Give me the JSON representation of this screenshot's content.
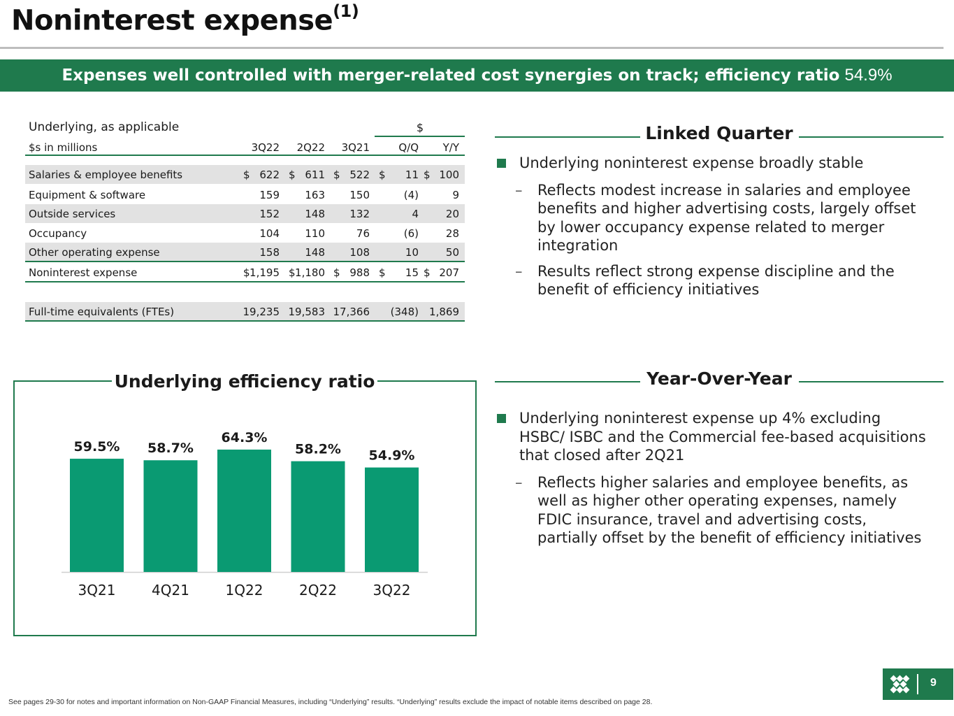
{
  "page": {
    "title": "Noninterest expense",
    "title_superscript": "(1)",
    "page_number": "9",
    "footnote": "See pages 29-30 for notes and important information on Non-GAAP Financial Measures, including “Underlying” results. “Underlying” results exclude the impact of notable items described on page 28."
  },
  "banner": {
    "text": "Expenses well controlled with merger-related cost synergies on track; efficiency ratio",
    "ratio": "54.9%"
  },
  "table": {
    "caption": "Underlying, as applicable",
    "group_header": "$",
    "units_label": "$s in millions",
    "columns": [
      "3Q22",
      "2Q22",
      "3Q21",
      "Q/Q",
      "Y/Y"
    ],
    "rows": [
      {
        "label": "Salaries & employee benefits",
        "values": [
          "622",
          "611",
          "522",
          "11",
          "100"
        ],
        "dollar": [
          "$",
          "$",
          "$",
          "$",
          "$"
        ]
      },
      {
        "label": "Equipment & software",
        "values": [
          "159",
          "163",
          "150",
          "(4)",
          "9"
        ],
        "dollar": [
          "",
          "",
          "",
          "",
          ""
        ]
      },
      {
        "label": "Outside services",
        "values": [
          "152",
          "148",
          "132",
          "4",
          "20"
        ],
        "dollar": [
          "",
          "",
          "",
          "",
          ""
        ]
      },
      {
        "label": "Occupancy",
        "values": [
          "104",
          "110",
          "76",
          "(6)",
          "28"
        ],
        "dollar": [
          "",
          "",
          "",
          "",
          ""
        ]
      },
      {
        "label": "Other operating expense",
        "values": [
          "158",
          "148",
          "108",
          "10",
          "50"
        ],
        "dollar": [
          "",
          "",
          "",
          "",
          ""
        ]
      },
      {
        "label": "Noninterest expense",
        "values": [
          "1,195",
          "1,180",
          "988",
          "15",
          "207"
        ],
        "dollar": [
          "$",
          "$",
          "$",
          "$",
          "$"
        ]
      },
      {
        "label": "Full-time equivalents (FTEs)",
        "values": [
          "19,235",
          "19,583",
          "17,366",
          "(348)",
          "1,869"
        ],
        "dollar": [
          "",
          "",
          "",
          "",
          ""
        ]
      }
    ]
  },
  "linked_quarter": {
    "heading": "Linked Quarter",
    "bullet": "Underlying noninterest expense broadly stable",
    "dash_symbol": "–",
    "subs": [
      "Reflects modest increase in salaries and employee benefits and higher advertising costs, largely offset by lower occupancy expense related to merger integration",
      "Results reflect strong expense discipline and the benefit of efficiency initiatives"
    ]
  },
  "year_over_year": {
    "heading": "Year-Over-Year",
    "bullet": "Underlying noninterest expense up 4% excluding HSBC/ ISBC and the Commercial fee-based acquisitions that closed after 2Q21",
    "dash_symbol": "–",
    "subs": [
      "Reflects higher salaries and employee benefits, as well as higher other operating expenses, namely FDIC insurance, travel and advertising costs, partially offset by the benefit of efficiency initiatives"
    ]
  },
  "chart_data": {
    "type": "bar",
    "title": "Underlying efficiency ratio",
    "categories": [
      "3Q21",
      "4Q21",
      "1Q22",
      "2Q22",
      "3Q22"
    ],
    "values": [
      59.5,
      58.7,
      64.3,
      58.2,
      54.9
    ],
    "value_labels": [
      "59.5%",
      "58.7%",
      "64.3%",
      "58.2%",
      "54.9%"
    ],
    "xlabel": "",
    "ylabel": "",
    "ylim": [
      0,
      64.3
    ],
    "grid": false,
    "bar_color": "#0a9a72"
  },
  "colors": {
    "brand_green": "#1f7a4d",
    "bar_green": "#0a9a72",
    "row_shade": "#e2e2e2"
  }
}
